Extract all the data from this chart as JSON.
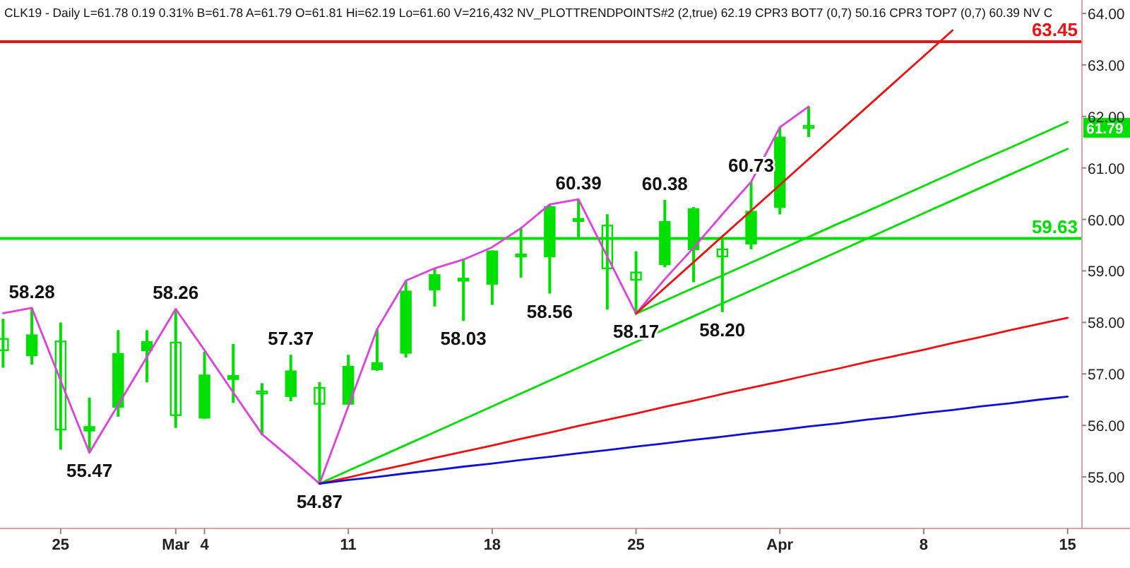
{
  "chart_data": {
    "type": "candlestick",
    "title": "CLK19 - Daily L=61.78 0.19 0.31% B=61.78 A=61.79 O=61.81 Hi=62.19 Lo=61.60 V=216,432 NV_PLOTTRENDPOINTS#2 (2,true) 62.19 CPR3 BOT7 (0,7) 50.16 CPR3 TOP7 (0,7) 60.39 NV C",
    "color": "#00e000",
    "categories": [
      null,
      null,
      "25",
      null,
      null,
      null,
      "Mar",
      "4",
      null,
      null,
      null,
      null,
      "11",
      null,
      null,
      null,
      null,
      "18",
      null,
      null,
      null,
      null,
      "25",
      null,
      null,
      null,
      null,
      "Apr",
      null,
      null,
      null,
      null,
      "8",
      null,
      null,
      null,
      null,
      "15"
    ],
    "ohlc": [
      [
        57.68,
        58.07,
        57.12,
        57.46
      ],
      [
        57.36,
        58.28,
        57.18,
        57.75
      ],
      [
        57.63,
        58.0,
        55.53,
        55.92
      ],
      [
        55.9,
        56.54,
        55.47,
        55.97
      ],
      [
        56.36,
        57.85,
        56.17,
        57.39
      ],
      [
        57.46,
        57.85,
        56.84,
        57.62
      ],
      [
        57.61,
        58.26,
        55.95,
        56.2
      ],
      [
        56.15,
        57.43,
        56.13,
        56.97
      ],
      [
        56.9,
        57.58,
        56.44,
        56.96
      ],
      [
        56.66,
        56.82,
        55.81,
        56.62
      ],
      [
        56.57,
        57.37,
        56.47,
        57.05
      ],
      [
        56.73,
        56.84,
        54.87,
        56.42
      ],
      [
        56.42,
        57.37,
        56.41,
        57.14
      ],
      [
        57.09,
        57.87,
        57.06,
        57.21
      ],
      [
        57.41,
        58.81,
        57.32,
        58.6
      ],
      [
        58.64,
        59.05,
        58.31,
        58.92
      ],
      [
        58.83,
        59.24,
        58.03,
        58.83
      ],
      [
        58.75,
        59.4,
        58.34,
        59.38
      ],
      [
        59.3,
        59.83,
        58.87,
        59.3
      ],
      [
        59.28,
        60.29,
        58.56,
        60.24
      ],
      [
        59.99,
        60.39,
        59.65,
        59.99
      ],
      [
        59.88,
        60.1,
        58.25,
        59.05
      ],
      [
        58.97,
        59.38,
        58.17,
        58.83
      ],
      [
        59.13,
        60.38,
        59.07,
        59.95
      ],
      [
        59.42,
        60.24,
        58.78,
        60.2
      ],
      [
        59.42,
        59.62,
        58.2,
        59.28
      ],
      [
        59.53,
        60.73,
        59.42,
        60.15
      ],
      [
        60.24,
        61.79,
        60.1,
        61.59
      ],
      [
        61.81,
        62.19,
        61.6,
        61.78
      ],
      null,
      null,
      null,
      null,
      null,
      null,
      null,
      null,
      null
    ],
    "series": [
      {
        "type": "line",
        "color": "#e040e0",
        "values": [
          58.18,
          58.28,
          56.87,
          55.47,
          56.4,
          57.33,
          58.26,
          57.46,
          56.64,
          55.83,
          55.36,
          54.87,
          56.37,
          57.87,
          58.81,
          59.05,
          59.22,
          59.46,
          59.83,
          60.29,
          60.39,
          59.28,
          58.17,
          58.84,
          59.45,
          60.1,
          60.73,
          61.79,
          62.19,
          null,
          null,
          null,
          null,
          null,
          null,
          null,
          null,
          null
        ]
      },
      {
        "type": "line",
        "color": "#00e000",
        "values": [
          null,
          null,
          null,
          null,
          null,
          null,
          null,
          null,
          null,
          null,
          null,
          54.87,
          55.12,
          55.37,
          55.62,
          55.87,
          56.12,
          56.37,
          56.62,
          56.87,
          57.12,
          57.37,
          57.62,
          57.87,
          58.12,
          58.37,
          58.62,
          58.87,
          59.12,
          59.37,
          59.62,
          59.87,
          60.12,
          60.37,
          60.62,
          60.87,
          61.12,
          61.37
        ]
      },
      {
        "type": "line",
        "color": "#00e000",
        "values": [
          null,
          null,
          null,
          null,
          null,
          null,
          null,
          null,
          null,
          null,
          null,
          null,
          null,
          null,
          null,
          null,
          null,
          null,
          null,
          null,
          null,
          null,
          58.17,
          58.42,
          58.67,
          58.91,
          59.16,
          59.41,
          59.66,
          59.91,
          60.15,
          60.4,
          60.65,
          60.9,
          61.15,
          61.39,
          61.64,
          61.89
        ]
      },
      {
        "type": "line",
        "color": "#ee1111",
        "values": [
          null,
          null,
          null,
          null,
          null,
          null,
          null,
          null,
          null,
          null,
          null,
          null,
          null,
          null,
          null,
          null,
          null,
          null,
          null,
          null,
          null,
          null,
          58.17,
          58.67,
          59.17,
          59.67,
          60.17,
          60.67,
          61.17,
          61.67,
          62.17,
          62.67,
          63.17,
          63.67,
          null,
          null,
          null,
          null
        ]
      },
      {
        "type": "line",
        "color": "#ee1111",
        "values": [
          null,
          null,
          null,
          null,
          null,
          null,
          null,
          null,
          null,
          null,
          null,
          54.87,
          54.99,
          55.12,
          55.24,
          55.37,
          55.49,
          55.61,
          55.74,
          55.86,
          55.99,
          56.11,
          56.23,
          56.36,
          56.48,
          56.61,
          56.73,
          56.85,
          56.98,
          57.1,
          57.23,
          57.35,
          57.47,
          57.6,
          57.72,
          57.85,
          57.97,
          58.09
        ]
      },
      {
        "type": "line",
        "color": "#1010d0",
        "values": [
          null,
          null,
          null,
          null,
          null,
          null,
          null,
          null,
          null,
          null,
          null,
          54.87,
          54.94,
          55.0,
          55.07,
          55.13,
          55.2,
          55.26,
          55.33,
          55.39,
          55.46,
          55.52,
          55.59,
          55.65,
          55.72,
          55.78,
          55.85,
          55.91,
          55.98,
          56.04,
          56.11,
          56.17,
          56.24,
          56.3,
          56.37,
          56.43,
          56.5,
          56.56
        ]
      }
    ],
    "ref_lines": [
      {
        "axis": "y",
        "value": 63.45,
        "label": "63.45",
        "color": "#ee1111"
      },
      {
        "axis": "y",
        "value": 59.63,
        "label": "59.63",
        "color": "#00e000"
      }
    ],
    "annotations": [
      {
        "text": "58.28",
        "y": 58.28
      },
      {
        "text": "55.47",
        "y": 55.47
      },
      {
        "text": "58.26",
        "y": 58.26
      },
      {
        "text": "57.37",
        "y": 57.37
      },
      {
        "text": "54.87",
        "y": 54.87
      },
      {
        "text": "58.03",
        "y": 58.03
      },
      {
        "text": "58.56",
        "y": 58.56
      },
      {
        "text": "60.39",
        "y": 60.39
      },
      {
        "text": "58.17",
        "y": 58.17
      },
      {
        "text": "60.38",
        "y": 60.38
      },
      {
        "text": "58.20",
        "y": 58.2
      },
      {
        "text": "60.73",
        "y": 60.73
      },
      "61.79"
    ],
    "ylim": [
      54.0,
      64.26
    ],
    "yticks": [
      {
        "value": 55,
        "label": "55.00"
      },
      {
        "value": 56,
        "label": "56.00"
      },
      {
        "value": 57,
        "label": "57.00"
      },
      {
        "value": 58,
        "label": "58.00"
      },
      {
        "value": 59,
        "label": "59.00"
      },
      {
        "value": 60,
        "label": "60.00"
      },
      {
        "value": 61,
        "label": "61.00"
      },
      {
        "value": 62,
        "label": "62.00"
      },
      {
        "value": 63,
        "label": "63.00"
      },
      {
        "value": 64,
        "label": "64.00"
      }
    ]
  }
}
